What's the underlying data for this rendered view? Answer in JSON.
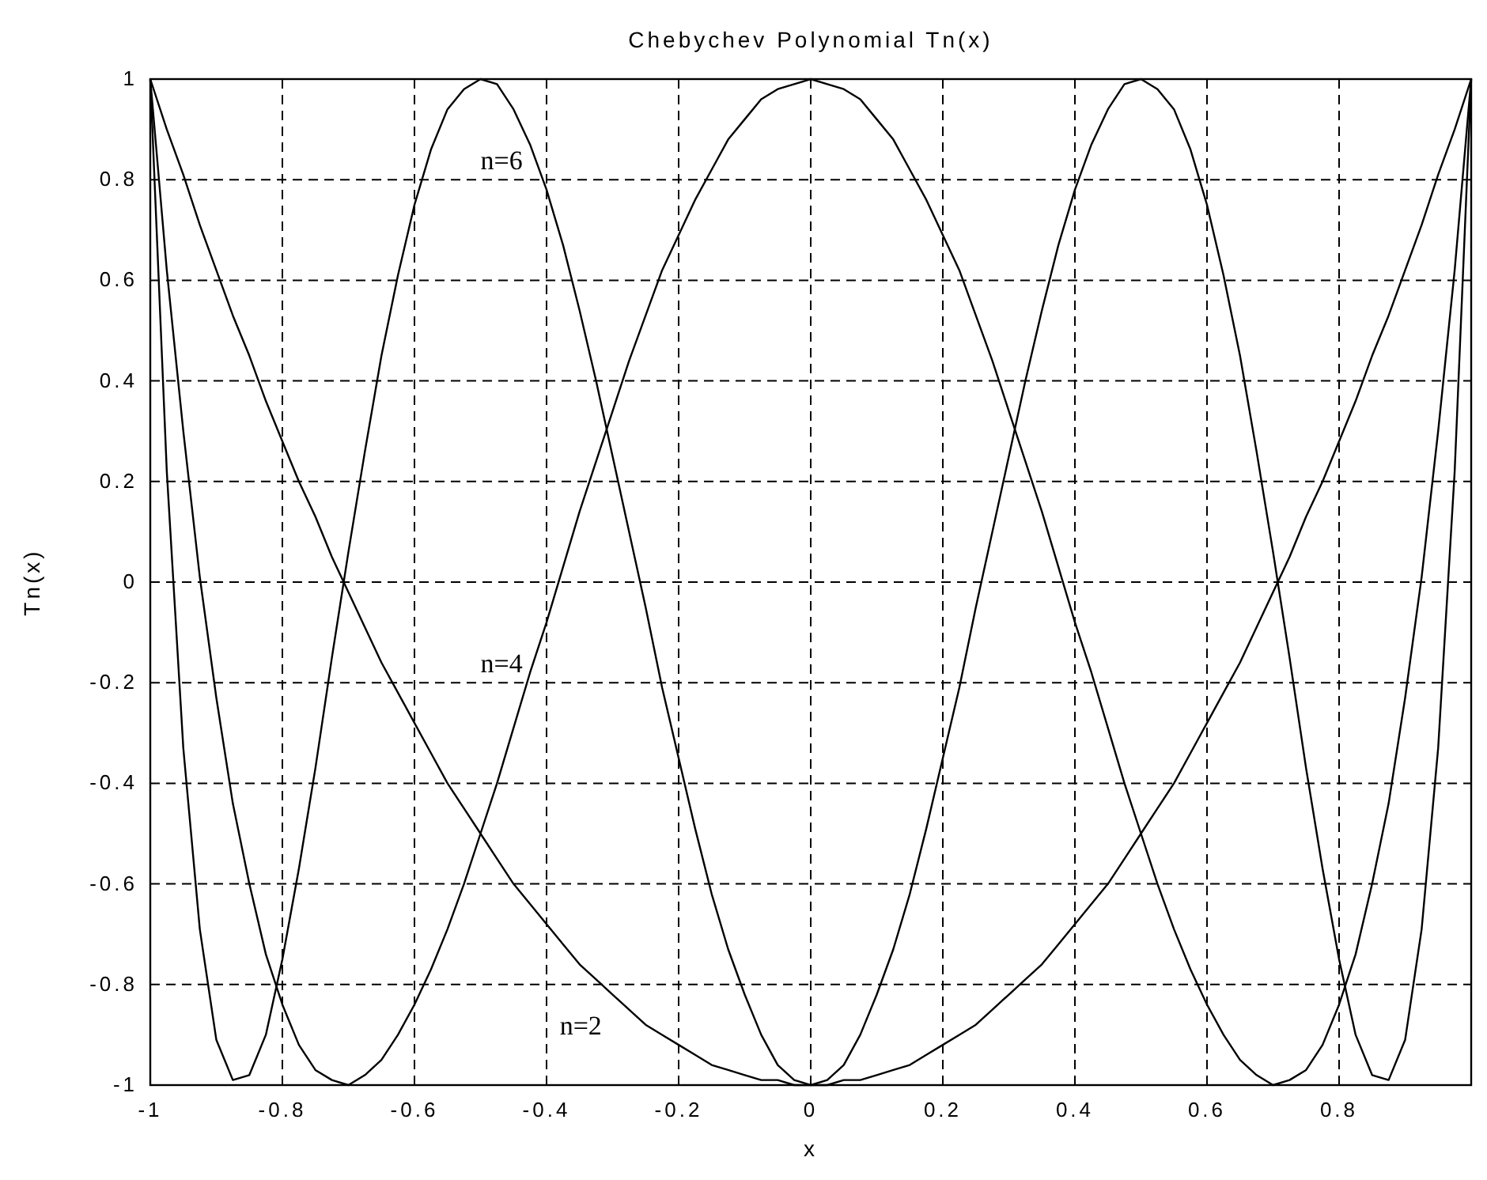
{
  "chart_data": {
    "type": "line",
    "title": "Chebychev Polynomial Tn(x)",
    "xlabel": "x",
    "ylabel": "Tn(x)",
    "x": [
      -1,
      -0.975,
      -0.95,
      -0.925,
      -0.9,
      -0.875,
      -0.85,
      -0.825,
      -0.8,
      -0.775,
      -0.75,
      -0.725,
      -0.7,
      -0.675,
      -0.65,
      -0.625,
      -0.6,
      -0.575,
      -0.55,
      -0.525,
      -0.5,
      -0.475,
      -0.45,
      -0.425,
      -0.4,
      -0.375,
      -0.35,
      -0.325,
      -0.3,
      -0.275,
      -0.25,
      -0.225,
      -0.2,
      -0.175,
      -0.15,
      -0.125,
      -0.1,
      -0.075,
      -0.05,
      -0.025,
      0,
      0.025,
      0.05,
      0.075,
      0.1,
      0.125,
      0.15,
      0.175,
      0.2,
      0.225,
      0.25,
      0.275,
      0.3,
      0.325,
      0.35,
      0.375,
      0.4,
      0.425,
      0.45,
      0.475,
      0.5,
      0.525,
      0.55,
      0.575,
      0.6,
      0.625,
      0.65,
      0.675,
      0.7,
      0.725,
      0.75,
      0.775,
      0.8,
      0.825,
      0.85,
      0.875,
      0.9,
      0.925,
      0.95,
      0.975,
      1
    ],
    "series": [
      {
        "name": "n=2",
        "color": "#000000",
        "values": [
          1,
          0.9,
          0.81,
          0.71,
          0.62,
          0.53,
          0.45,
          0.36,
          0.28,
          0.2,
          0.13,
          0.05,
          -0.02,
          -0.09,
          -0.16,
          -0.22,
          -0.28,
          -0.34,
          -0.4,
          -0.45,
          -0.5,
          -0.55,
          -0.6,
          -0.64,
          -0.68,
          -0.72,
          -0.76,
          -0.79,
          -0.82,
          -0.85,
          -0.88,
          -0.9,
          -0.92,
          -0.94,
          -0.96,
          -0.97,
          -0.98,
          -0.99,
          -0.99,
          -1,
          -1,
          -1,
          -0.99,
          -0.99,
          -0.98,
          -0.97,
          -0.96,
          -0.94,
          -0.92,
          -0.9,
          -0.88,
          -0.85,
          -0.82,
          -0.79,
          -0.76,
          -0.72,
          -0.68,
          -0.64,
          -0.6,
          -0.55,
          -0.5,
          -0.45,
          -0.4,
          -0.34,
          -0.28,
          -0.22,
          -0.16,
          -0.09,
          -0.02,
          0.05,
          0.13,
          0.2,
          0.28,
          0.36,
          0.45,
          0.53,
          0.62,
          0.71,
          0.81,
          0.9,
          1
        ]
      },
      {
        "name": "n=4",
        "color": "#000000",
        "values": [
          1,
          0.62,
          0.3,
          0.01,
          -0.23,
          -0.44,
          -0.6,
          -0.74,
          -0.84,
          -0.92,
          -0.97,
          -0.99,
          -1,
          -0.98,
          -0.95,
          -0.9,
          -0.84,
          -0.77,
          -0.69,
          -0.6,
          -0.5,
          -0.4,
          -0.29,
          -0.18,
          -0.08,
          0.03,
          0.14,
          0.24,
          0.34,
          0.44,
          0.53,
          0.62,
          0.69,
          0.76,
          0.82,
          0.88,
          0.92,
          0.96,
          0.98,
          0.99,
          1,
          0.99,
          0.98,
          0.96,
          0.92,
          0.88,
          0.82,
          0.76,
          0.69,
          0.62,
          0.53,
          0.44,
          0.34,
          0.24,
          0.14,
          0.03,
          -0.08,
          -0.18,
          -0.29,
          -0.4,
          -0.5,
          -0.6,
          -0.69,
          -0.77,
          -0.84,
          -0.9,
          -0.95,
          -0.98,
          -1,
          -0.99,
          -0.97,
          -0.92,
          -0.84,
          -0.74,
          -0.6,
          -0.44,
          -0.23,
          0.01,
          0.3,
          0.62,
          1
        ]
      },
      {
        "name": "n=6",
        "color": "#000000",
        "values": [
          1,
          0.22,
          -0.33,
          -0.69,
          -0.91,
          -0.99,
          -0.98,
          -0.9,
          -0.75,
          -0.57,
          -0.37,
          -0.15,
          0.06,
          0.26,
          0.45,
          0.61,
          0.75,
          0.86,
          0.94,
          0.98,
          1,
          0.99,
          0.94,
          0.87,
          0.78,
          0.67,
          0.54,
          0.4,
          0.25,
          0.1,
          -0.05,
          -0.21,
          -0.35,
          -0.49,
          -0.62,
          -0.73,
          -0.82,
          -0.9,
          -0.96,
          -0.99,
          -1,
          -0.99,
          -0.96,
          -0.9,
          -0.82,
          -0.73,
          -0.62,
          -0.49,
          -0.35,
          -0.21,
          -0.05,
          0.1,
          0.25,
          0.4,
          0.54,
          0.67,
          0.78,
          0.87,
          0.94,
          0.99,
          1,
          0.98,
          0.94,
          0.86,
          0.75,
          0.61,
          0.45,
          0.26,
          0.06,
          -0.15,
          -0.37,
          -0.57,
          -0.75,
          -0.9,
          -0.98,
          -0.99,
          -0.91,
          -0.69,
          -0.33,
          0.22,
          1
        ]
      }
    ],
    "xlim": [
      -1,
      1
    ],
    "xticks": [
      -1,
      -0.8,
      -0.6,
      -0.4,
      -0.2,
      0,
      0.2,
      0.4,
      0.6,
      0.8
    ],
    "ylim": [
      -1,
      1
    ],
    "yticks": [
      -1,
      -0.8,
      -0.6,
      -0.4,
      -0.2,
      0,
      0.2,
      0.4,
      0.6,
      0.8,
      1
    ],
    "grid": true,
    "legend": false,
    "marker": "none",
    "line_style": "solid"
  }
}
